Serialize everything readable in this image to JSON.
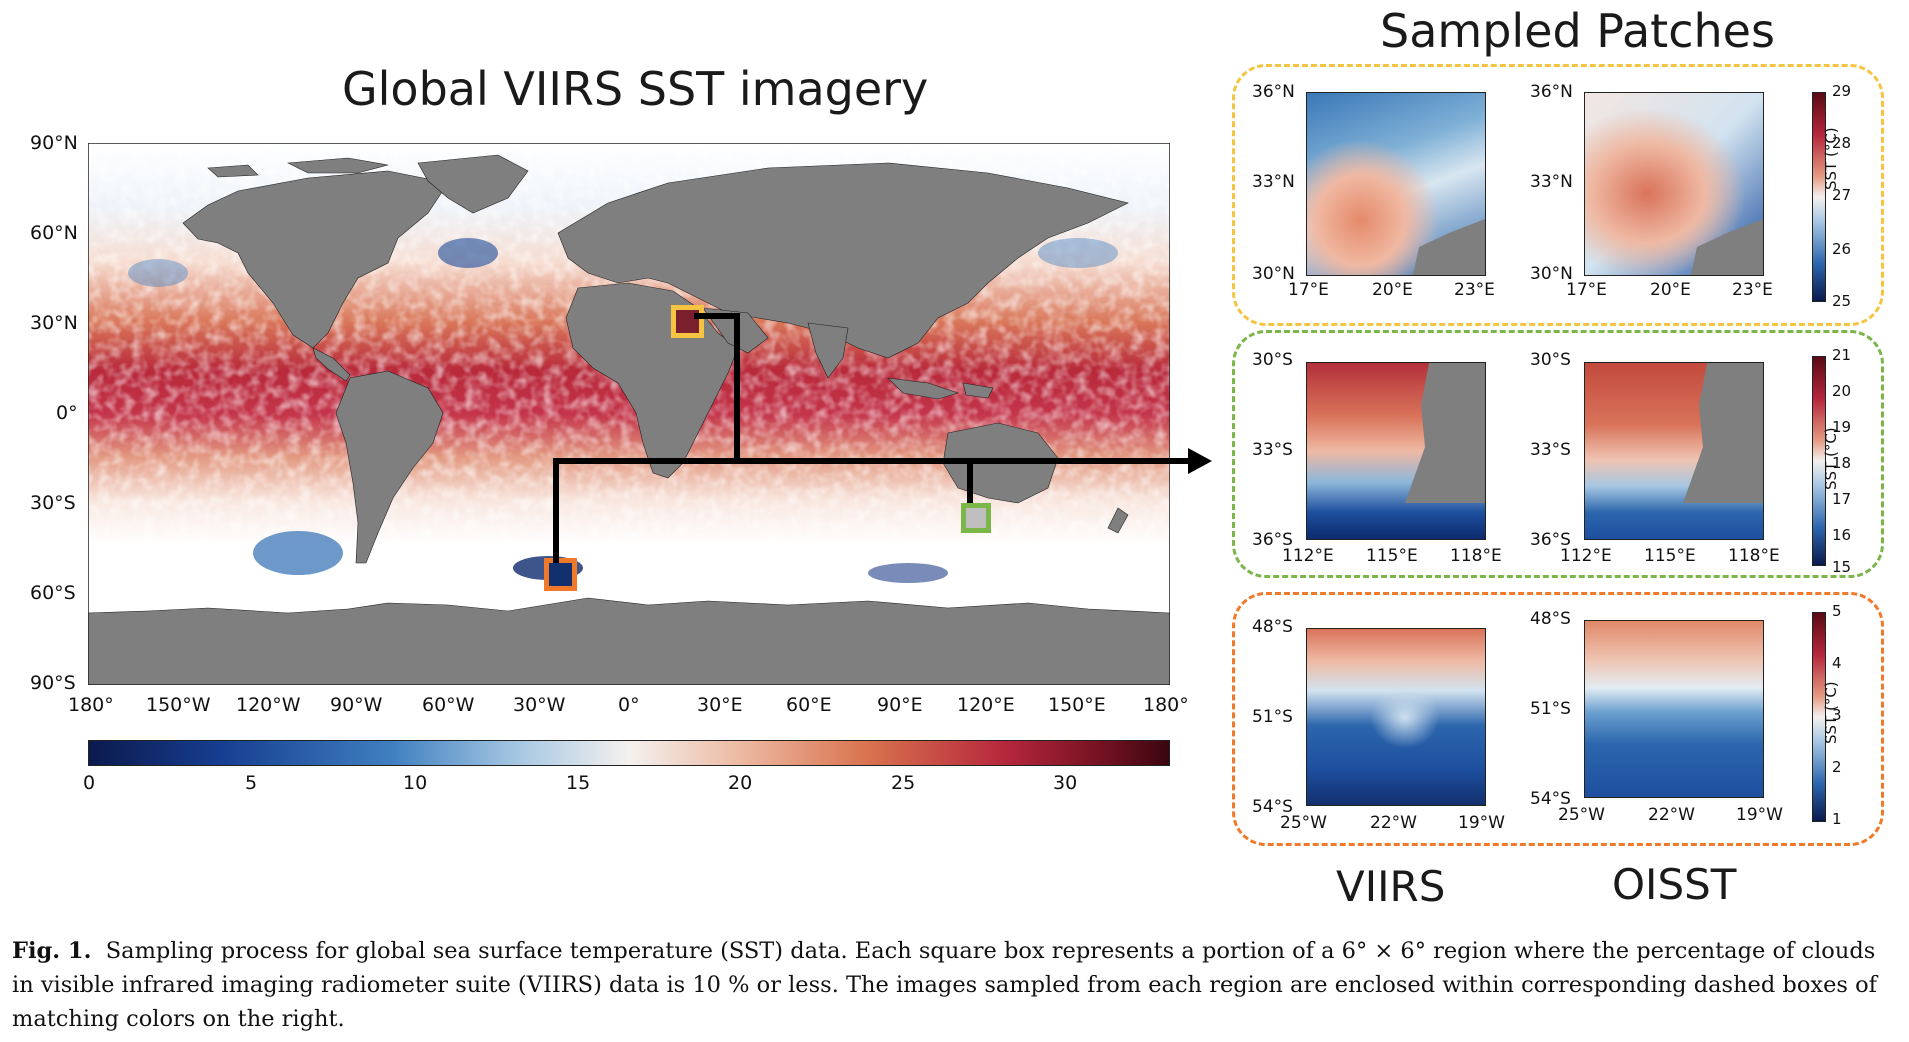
{
  "map": {
    "title": "Global VIIRS SST imagery",
    "lat_ticks": [
      "90°N",
      "60°N",
      "30°N",
      "0°",
      "30°S",
      "60°S",
      "90°S"
    ],
    "lon_ticks": [
      "180°",
      "150°W",
      "120°W",
      "90°W",
      "60°W",
      "30°W",
      "0°",
      "30°E",
      "60°E",
      "90°E",
      "120°E",
      "150°E",
      "180°"
    ],
    "colorbar_ticks": [
      "0",
      "5",
      "10",
      "15",
      "20",
      "25",
      "30"
    ],
    "box_colors": {
      "yellow": "#f5c542",
      "green": "#7ab648",
      "orange": "#f07a2a"
    }
  },
  "patches": {
    "title": "Sampled Patches",
    "groups": [
      {
        "color": "#f5c542",
        "lat_ticks": [
          "36°N",
          "33°N",
          "30°N"
        ],
        "lon_ticks": [
          "17°E",
          "20°E",
          "23°E"
        ],
        "cbar_ticks": [
          "29",
          "28",
          "27",
          "26",
          "25"
        ],
        "cbar_label": "SST (°C)"
      },
      {
        "color": "#7ab648",
        "lat_ticks": [
          "30°S",
          "33°S",
          "36°S"
        ],
        "lon_ticks": [
          "112°E",
          "115°E",
          "118°E"
        ],
        "cbar_ticks": [
          "21",
          "20",
          "19",
          "18",
          "17",
          "16",
          "15"
        ],
        "cbar_label": "SST (°C)"
      },
      {
        "color": "#f07a2a",
        "lat_ticks": [
          "48°S",
          "51°S",
          "54°S"
        ],
        "lon_ticks": [
          "25°W",
          "22°W",
          "19°W"
        ],
        "cbar_ticks": [
          "5",
          "4",
          "3",
          "2",
          "1"
        ],
        "cbar_label": "SST (°C)"
      }
    ],
    "method_labels": [
      "VIIRS",
      "OISST"
    ]
  },
  "caption": {
    "label": "Fig. 1.",
    "text": "Sampling process for global sea surface temperature (SST) data. Each square box represents a portion of a 6° × 6° region where the percentage of clouds in visible infrared imaging radiometer suite (VIIRS) data is 10 % or less. The images sampled from each region are enclosed within corresponding dashed boxes of matching colors on the right."
  }
}
